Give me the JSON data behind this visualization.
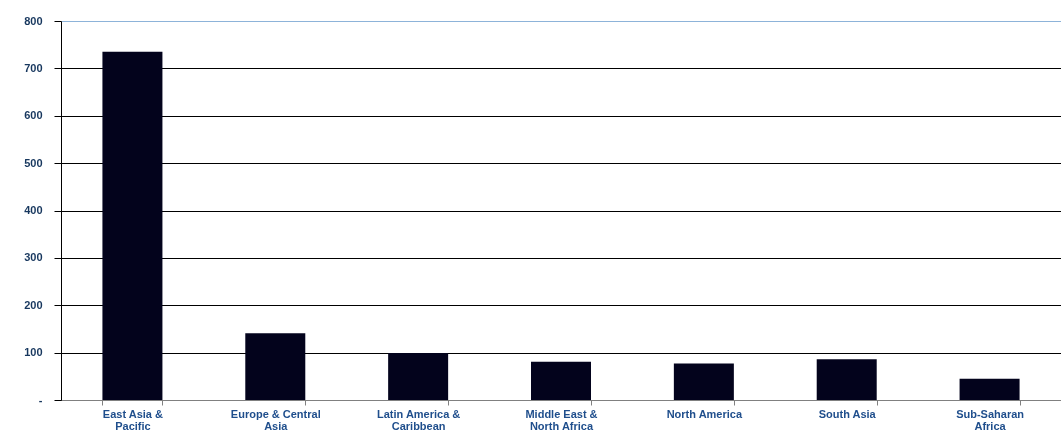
{
  "chart_data": {
    "type": "bar",
    "categories": [
      "East Asia & Pacific",
      "Europe & Central Asia",
      "Latin America & Caribbean",
      "Middle East & North Africa",
      "North America",
      "South Asia",
      "Sub-Saharan Africa"
    ],
    "values": [
      735,
      141,
      99,
      81,
      77,
      86,
      45
    ],
    "color": "#03031c",
    "ylim": [
      0,
      800
    ],
    "yticks": [
      {
        "value": 0,
        "label": "-"
      },
      100,
      200,
      300,
      400,
      500,
      600,
      700,
      800
    ],
    "grid": "y"
  }
}
